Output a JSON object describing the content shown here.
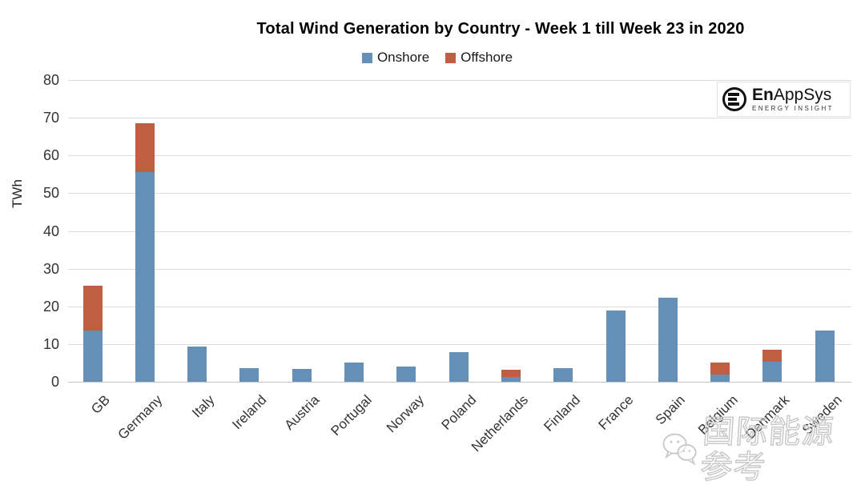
{
  "chart_data": {
    "type": "bar",
    "stacked": true,
    "title": "Total Wind Generation by Country - Week 1 till Week 23 in 2020",
    "ylabel": "TWh",
    "ylim": [
      0,
      80
    ],
    "yticks": [
      0,
      10,
      20,
      30,
      40,
      50,
      60,
      70,
      80
    ],
    "grid": true,
    "legend_position": "top-center",
    "grid_color": "#dcdcdc",
    "axis_color": "#c3c3c3",
    "categories": [
      "GB",
      "Germany",
      "Italy",
      "Ireland",
      "Austria",
      "Portugal",
      "Norway",
      "Poland",
      "Netherlands",
      "Finland",
      "France",
      "Spain",
      "Belgium",
      "Denmark",
      "Sweden"
    ],
    "series": [
      {
        "name": "Onshore",
        "color": "#6490b7",
        "values": [
          13.5,
          55.7,
          9.3,
          3.7,
          3.5,
          5.1,
          4.1,
          7.9,
          1.3,
          3.6,
          18.9,
          22.3,
          1.9,
          5.3,
          13.6
        ]
      },
      {
        "name": "Offshore",
        "color": "#c05e41",
        "values": [
          12.0,
          12.8,
          0,
          0,
          0,
          0,
          0,
          0,
          1.9,
          0,
          0,
          0,
          3.2,
          3.2,
          0
        ]
      }
    ]
  },
  "branding": {
    "logo_bold": "En",
    "logo_rest": "AppSys",
    "logo_subtext": "ENERGY INSIGHT"
  },
  "watermark": {
    "text": "国际能源参考",
    "icon": "chat-bubbles-icon"
  }
}
